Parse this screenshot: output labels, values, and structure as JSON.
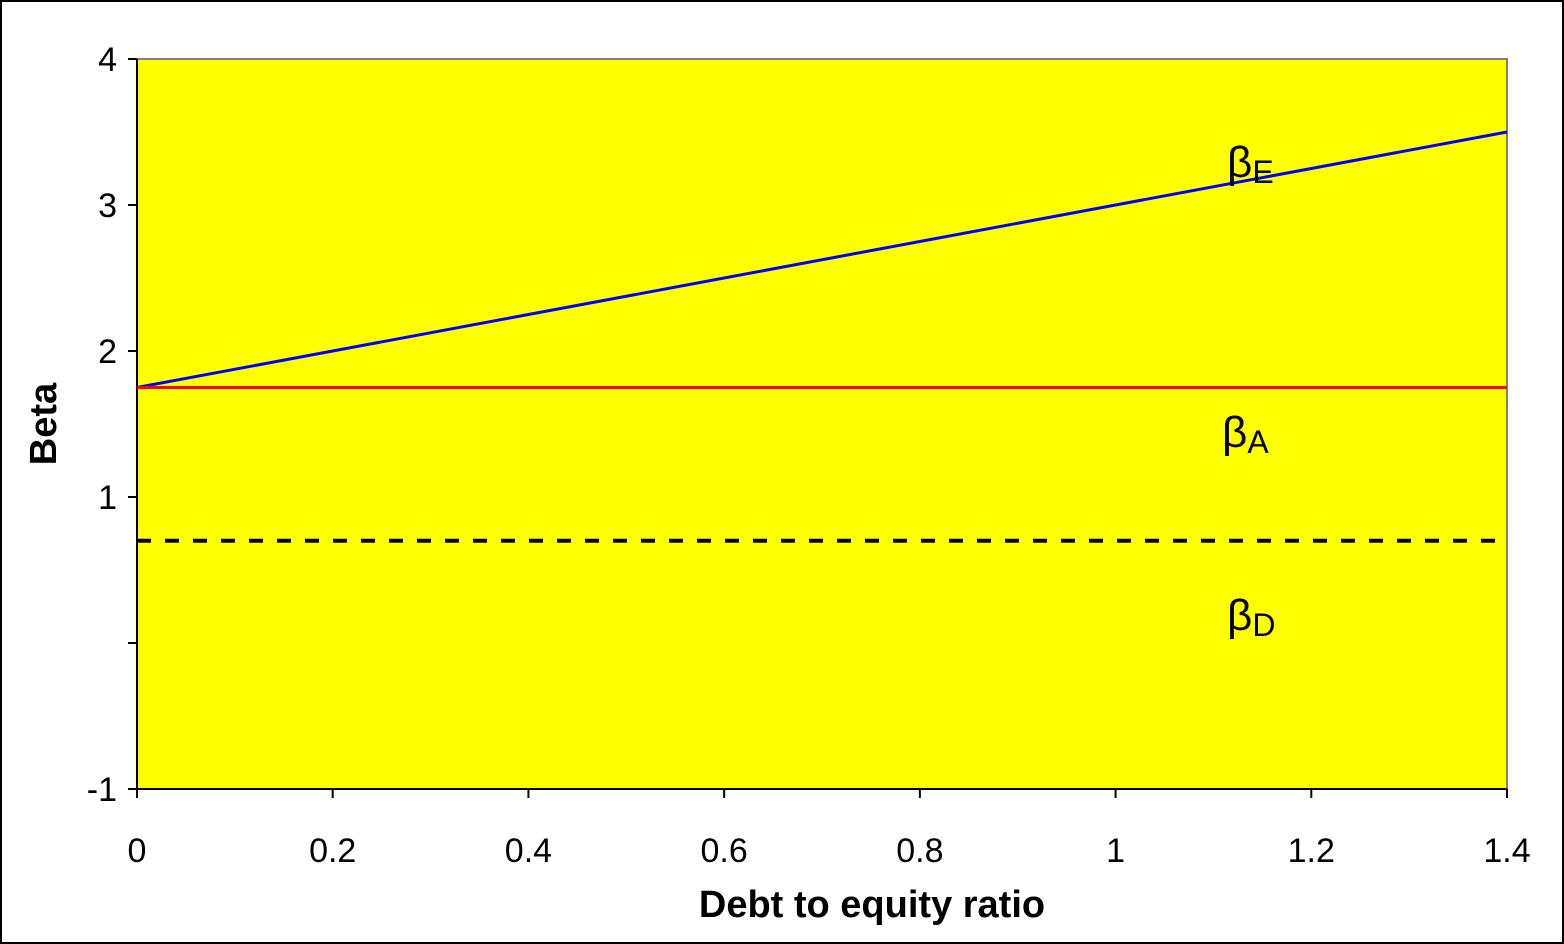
{
  "chart_data": {
    "type": "line",
    "title": "",
    "xlabel": "Debt to equity ratio",
    "ylabel": "Beta",
    "xlim": [
      0,
      1.4
    ],
    "ylim": [
      -1,
      4
    ],
    "x_ticks": [
      0,
      0.2,
      0.4,
      0.6,
      0.8,
      1,
      1.2,
      1.4
    ],
    "x_tick_labels": [
      "0",
      "0.2",
      "0.4",
      "0.6",
      "0.8",
      "1",
      "1.2",
      "1.4"
    ],
    "y_ticks": [
      -1,
      1,
      2,
      3,
      4
    ],
    "y_tick_labels": [
      "-1",
      "1",
      "2",
      "3",
      "4"
    ],
    "plot_background": "#ffff00",
    "grid": false,
    "legend": "none",
    "series": [
      {
        "label_symbol": "β",
        "label_subscript": "E",
        "color": "#0000ff",
        "style": "solid",
        "x": [
          0,
          0.2,
          0.4,
          0.6,
          0.8,
          1,
          1.2,
          1.4
        ],
        "y": [
          1.75,
          2.0,
          2.25,
          2.5,
          2.75,
          3.0,
          3.25,
          3.5
        ]
      },
      {
        "label_symbol": "β",
        "label_subscript": "A",
        "color": "#ff0000",
        "style": "solid",
        "x": [
          0,
          1.4
        ],
        "y": [
          1.75,
          1.75
        ]
      },
      {
        "label_symbol": "β",
        "label_subscript": "D",
        "color": "#000000",
        "style": "dashed",
        "x": [
          0,
          1.4
        ],
        "y": [
          0.7,
          0.7
        ]
      }
    ]
  }
}
